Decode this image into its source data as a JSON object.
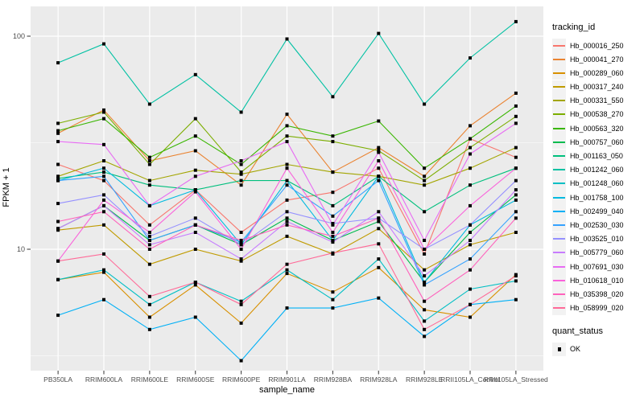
{
  "figure": {
    "background": "#FFFFFF",
    "panel_background": "#EBEBEB",
    "gridline_color": "#FFFFFF",
    "axis_text_color": "#4D4D4D",
    "tick_color": "#333333",
    "point_color": "#000000"
  },
  "axes": {
    "x": {
      "title": "sample_name"
    },
    "y": {
      "title": "FPKM + 1",
      "tick_labels": [
        "100",
        "10"
      ]
    }
  },
  "legend": {
    "tracking_title": "tracking_id",
    "quant_title": "quant_status",
    "quant_items": [
      {
        "label": "OK",
        "icon": "black-square-point"
      }
    ]
  },
  "chart_data": {
    "type": "line",
    "title": "",
    "xlabel": "sample_name",
    "ylabel": "FPKM + 1",
    "y_scale": "log10",
    "ylim": [
      2.7,
      138
    ],
    "y_breaks": [
      10,
      100
    ],
    "y_minor_breaks": [
      3.162,
      31.62
    ],
    "grid": true,
    "legend_position": "right",
    "point_shape": "filled-black-square",
    "x_categories": [
      "PB350LA",
      "RRIM600LA",
      "RRIM600LE",
      "RRIM600SE",
      "RRIM600PE",
      "RRIM901LA",
      "RRIM928BA",
      "RRIM928LA",
      "RRIM928LE",
      "RRII105LA_Control",
      "RRII105LA_Stressed"
    ],
    "series": [
      {
        "name": "Hb_000016_250",
        "color": "#F8766D",
        "values": [
          25,
          21,
          13,
          19,
          12,
          17,
          18.5,
          24,
          9.5,
          33,
          27
        ]
      },
      {
        "name": "Hb_000041_270",
        "color": "#EA8331",
        "values": [
          35,
          45,
          26,
          29,
          20,
          43,
          23,
          30,
          22,
          38,
          54
        ]
      },
      {
        "name": "Hb_000289_060",
        "color": "#D89000",
        "values": [
          7.2,
          7.8,
          4.8,
          6.8,
          4.5,
          7.7,
          6.3,
          8.2,
          5.2,
          4.8,
          7.6
        ]
      },
      {
        "name": "Hb_000317_240",
        "color": "#C09B00",
        "values": [
          12.3,
          13,
          8.5,
          10,
          8.8,
          11.5,
          9.5,
          12.5,
          8,
          10.5,
          12
        ]
      },
      {
        "name": "Hb_000331_550",
        "color": "#A3A500",
        "values": [
          22,
          26,
          21,
          23.5,
          22.5,
          25,
          23,
          22,
          20,
          24,
          30
        ]
      },
      {
        "name": "Hb_000538_270",
        "color": "#7CAE00",
        "values": [
          39,
          44,
          25,
          41,
          23,
          34,
          32,
          29,
          21,
          30,
          42
        ]
      },
      {
        "name": "Hb_000563_320",
        "color": "#39B600",
        "values": [
          36,
          41,
          27,
          34,
          25,
          38,
          34,
          40,
          24,
          33,
          47
        ]
      },
      {
        "name": "Hb_000757_060",
        "color": "#00BB4E",
        "values": [
          12.5,
          16,
          11,
          13,
          10.5,
          14,
          11,
          13.5,
          7,
          12,
          18
        ]
      },
      {
        "name": "Hb_001163_050",
        "color": "#00BF7D",
        "values": [
          21.5,
          23,
          20,
          19,
          21,
          21,
          16,
          22,
          15,
          20,
          24
        ]
      },
      {
        "name": "Hb_001242_060",
        "color": "#00C1A3",
        "values": [
          75,
          92,
          48,
          66,
          44,
          97,
          52,
          103,
          48,
          79,
          117
        ]
      },
      {
        "name": "Hb_001248_060",
        "color": "#00BFC4",
        "values": [
          7.2,
          8,
          5.5,
          7,
          5.7,
          8,
          5.8,
          9,
          4.6,
          6.5,
          7.1
        ]
      },
      {
        "name": "Hb_001758_100",
        "color": "#00BAE0",
        "values": [
          21,
          24,
          16,
          19,
          10.5,
          21,
          11,
          22,
          7,
          13,
          17
        ]
      },
      {
        "name": "Hb_002499_040",
        "color": "#00B0F6",
        "values": [
          4.9,
          5.8,
          4.2,
          4.8,
          3,
          5.3,
          5.3,
          5.9,
          3.9,
          5.5,
          5.8
        ]
      },
      {
        "name": "Hb_002530_030",
        "color": "#35A2FF",
        "values": [
          21,
          22,
          11,
          13,
          10.8,
          20,
          14.3,
          21,
          6.8,
          9,
          15
        ]
      },
      {
        "name": "Hb_003525_010",
        "color": "#9590FF",
        "values": [
          16.4,
          18,
          11.5,
          14,
          10.5,
          15,
          13.2,
          14,
          10,
          13,
          21
        ]
      },
      {
        "name": "Hb_005779_060",
        "color": "#C77CFF",
        "values": [
          12.5,
          16,
          10.5,
          12,
          9,
          13.5,
          10.8,
          15,
          7.5,
          11,
          19
        ]
      },
      {
        "name": "Hb_007691_030",
        "color": "#E76BF3",
        "values": [
          32,
          31,
          16,
          22,
          26,
          32,
          13,
          28.5,
          11,
          28,
          39
        ]
      },
      {
        "name": "Hb_010618_010",
        "color": "#FA62DB",
        "values": [
          8.8,
          17,
          12,
          18.6,
          10,
          24,
          12,
          26,
          10,
          16,
          24
        ]
      },
      {
        "name": "Hb_035398_020",
        "color": "#FF62BC",
        "values": [
          13.5,
          15,
          10,
          13,
          11,
          13,
          11.5,
          14,
          5.7,
          8,
          14
        ]
      },
      {
        "name": "Hb_058999_020",
        "color": "#FF6A98",
        "values": [
          8.8,
          9.5,
          6,
          7,
          5.5,
          8.5,
          9.6,
          10.6,
          4.2,
          5.5,
          7.5
        ]
      }
    ]
  }
}
